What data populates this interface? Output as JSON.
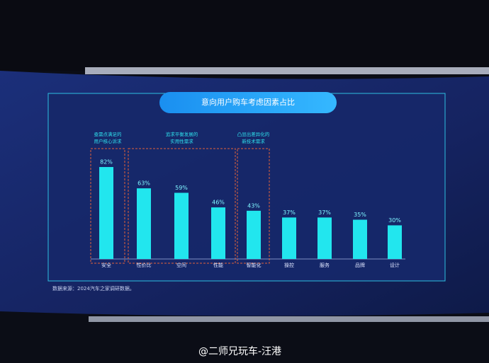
{
  "chart_data": {
    "type": "bar",
    "title": "意向用户购车考虑因素占比",
    "categories": [
      "安全",
      "性价比",
      "空间",
      "性能",
      "智能化",
      "操控",
      "服务",
      "品牌",
      "设计"
    ],
    "values": [
      82,
      63,
      59,
      46,
      43,
      37,
      37,
      35,
      30
    ],
    "value_labels": [
      "82%",
      "63%",
      "59%",
      "46%",
      "43%",
      "37%",
      "37%",
      "35%",
      "30%"
    ],
    "color": "#22e6ee",
    "annotations": [
      {
        "lines": [
          "亟需点满足的",
          "用户核心诉求"
        ]
      },
      {
        "lines": [
          "追求平衡发展的",
          "实用性需求"
        ]
      },
      {
        "lines": [
          "凸显出差异化的",
          "新技术需求"
        ]
      }
    ],
    "source": "数据来源：2024汽车之家调研数据。"
  },
  "watermark": "@二师兄玩车-汪港"
}
